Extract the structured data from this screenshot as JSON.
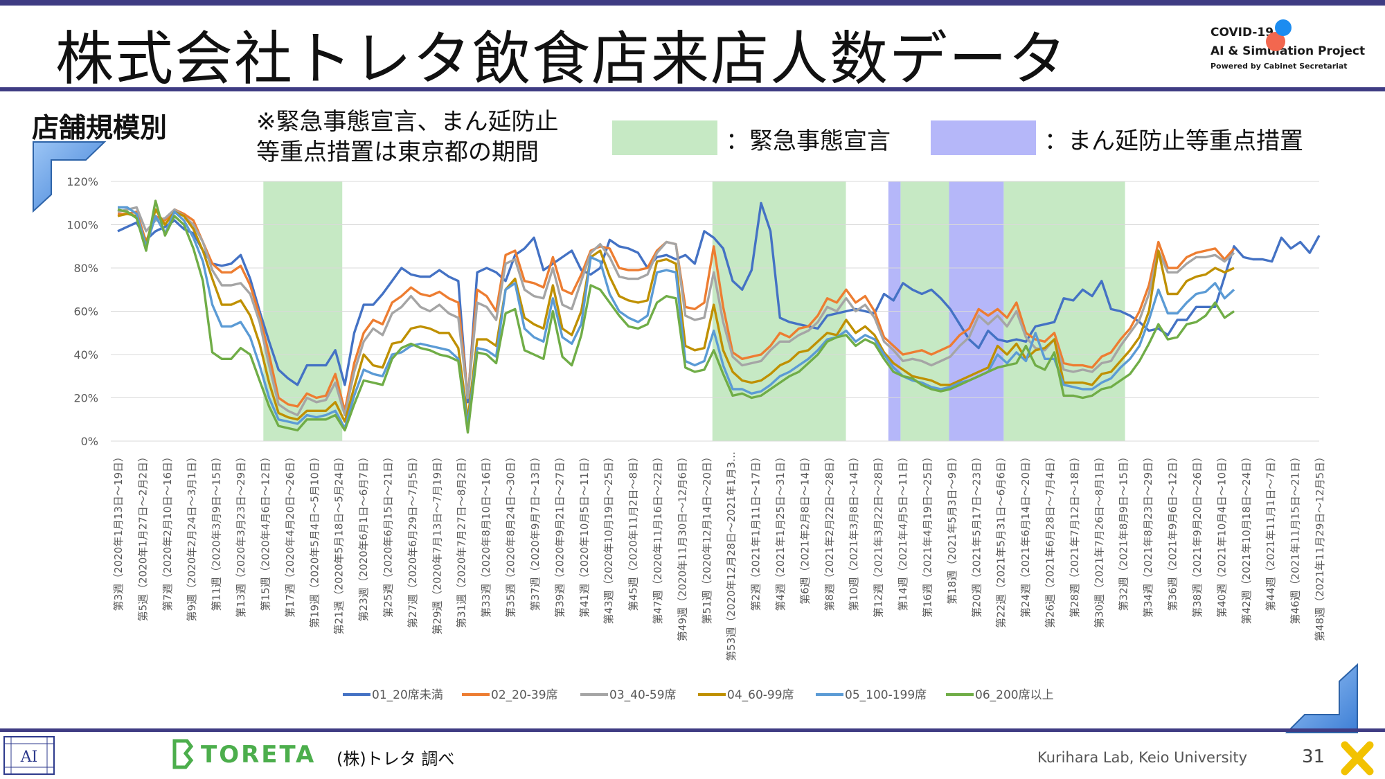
{
  "title": "株式会社トレタ飲食店来店人数データ",
  "project_logo": {
    "line1": "COVID-19",
    "line2": "AI & Simulation Project",
    "line3": "Powered by Cabinet Secretariat"
  },
  "subtitle": "店舗規模別",
  "note_line1": "※緊急事態宣言、まん延防止",
  "note_line2": "等重点措置は東京都の期間",
  "legend_green": "：緊急事態宣言",
  "legend_blue": "：まん延防止等重点措置",
  "colors": {
    "frame": "#3f3c83",
    "emergency": "#c6e9c4",
    "priority": "#b5b7f9"
  },
  "toreta_logo": "TORETA",
  "source": "(株)トレタ 調べ",
  "lab": "Kurihara Lab, Keio University",
  "page_number": "31",
  "chart_data": {
    "type": "line",
    "ylim": [
      0,
      120
    ],
    "yticks": [
      "0%",
      "20%",
      "40%",
      "60%",
      "80%",
      "100%",
      "120%"
    ],
    "y_unit": "%",
    "x_labels": [
      "第3週（2020年1月13日～19日）",
      "第5週（2020年1月27日～2月2日）",
      "第7週（2020年2月10日～16日）",
      "第9週（2020年2月24日～3月1日）",
      "第11週（2020年3月9日～15日）",
      "第13週（2020年3月23日～29日）",
      "第15週（2020年4月6日～12日）",
      "第17週（2020年4月20日～26日）",
      "第19週（2020年5月4日～5月10日）",
      "第21週（2020年5月18日～5月24日）",
      "第23週（2020年6月1日～6月7日）",
      "第25週（2020年6月15日～21日）",
      "第27週（2020年6月29日～7月5日）",
      "第29週（2020年7月13日～7月19日）",
      "第31週（2020年7月27日～8月2日）",
      "第33週（2020年8月10日～16日）",
      "第35週（2020年8月24日～30日）",
      "第37週（2020年9月7日～13日）",
      "第39週（2020年9月21日～27日）",
      "第41週（2020年10月5日～11日）",
      "第43週（2020年10月19日～25日）",
      "第45週（2020年11月2日～8日）",
      "第47週（2020年11月16日～22日）",
      "第49週（2020年11月30日～12月6日）",
      "第51週（2020年12月14日～20日）",
      "第53週（2020年12月28日～2021年1月3…",
      "第2週（2021年1月11日～17日）",
      "第4週（2021年1月25日～31日）",
      "第6週（2021年2月8日～14日）",
      "第8週（2021年2月22日～28日）",
      "第10週（2021年3月8日～14日）",
      "第12週（2021年3月22日～28日）",
      "第14週（2021年4月5日～11日）",
      "第16週（2021年4月19日～25日）",
      "第18週（2021年5月3日～9日）",
      "第20週（2021年5月17日～23日）",
      "第22週（2021年5月31日～6月6日）",
      "第24週（2021年6月14日～20日）",
      "第26週（2021年6月28日～7月4日）",
      "第28週（2021年7月12日～18日）",
      "第30週（2021年7月26日～8月1日）",
      "第32週（2021年8月9日～15日）",
      "第34週（2021年8月23日～29日）",
      "第36週（2021年9月6日～12日）",
      "第38週（2021年9月20日～26日）",
      "第40週（2021年10月4日～10日）",
      "第42週（2021年10月18日～24日）",
      "第44週（2021年11月1日～7日）",
      "第46週（2021年11月15日～21日）",
      "第48週（2021年11月29日～12月5日）"
    ],
    "x_index_first": 1,
    "x_index_last": 100,
    "emergency_periods": [
      [
        13,
        19.5
      ],
      [
        50,
        61
      ],
      [
        65.5,
        69.5
      ],
      [
        74,
        84
      ]
    ],
    "priority_periods": [
      [
        64.5,
        65.5
      ],
      [
        69.5,
        74
      ]
    ],
    "series": [
      {
        "name": "01_20席未満",
        "color": "#4472c4",
        "values": [
          97,
          99,
          101,
          93,
          97,
          99,
          102,
          98,
          96,
          88,
          82,
          81,
          82,
          86,
          75,
          60,
          46,
          33,
          29,
          26,
          35,
          35,
          35,
          42,
          26,
          50,
          63,
          63,
          68,
          74,
          80,
          77,
          76,
          76,
          79,
          76,
          74,
          18,
          78,
          80,
          78,
          74,
          86,
          89,
          94,
          79,
          82,
          85,
          88,
          79,
          77,
          80,
          93,
          90,
          89,
          87,
          80,
          85,
          86,
          84,
          86,
          82,
          97,
          94,
          89,
          74,
          70,
          79,
          110,
          97,
          57,
          55,
          54,
          53,
          52,
          58,
          59,
          60,
          61,
          60,
          59,
          68,
          65,
          73,
          70,
          68,
          70,
          66,
          61,
          54,
          47,
          43,
          51,
          47,
          46,
          47,
          46,
          53,
          54,
          55,
          66,
          65,
          70,
          67,
          74,
          61,
          60,
          58,
          55,
          51,
          52,
          49,
          56,
          56,
          62,
          62,
          62,
          76,
          90,
          85,
          84,
          84,
          83,
          94,
          89,
          92,
          87,
          95
        ]
      },
      {
        "name": "02_20-39席",
        "color": "#ed7d31",
        "values": [
          105,
          105,
          106,
          92,
          104,
          102,
          107,
          105,
          102,
          92,
          82,
          78,
          78,
          81,
          72,
          58,
          40,
          20,
          17,
          16,
          22,
          20,
          21,
          31,
          14,
          36,
          50,
          56,
          54,
          64,
          67,
          71,
          68,
          67,
          69,
          66,
          64,
          20,
          70,
          67,
          60,
          86,
          88,
          74,
          73,
          71,
          85,
          70,
          68,
          77,
          88,
          90,
          89,
          80,
          79,
          79,
          80,
          88,
          92,
          91,
          62,
          61,
          64,
          90,
          62,
          41,
          38,
          39,
          40,
          44,
          50,
          48,
          52,
          53,
          58,
          66,
          64,
          70,
          64,
          67,
          60,
          48,
          44,
          40,
          41,
          42,
          40,
          42,
          44,
          49,
          52,
          61,
          58,
          61,
          57,
          64,
          50,
          47,
          46,
          50,
          36,
          35,
          35,
          34,
          39,
          41,
          47,
          52,
          60,
          72,
          92,
          80,
          80,
          85,
          87,
          88,
          89,
          84,
          89
        ]
      },
      {
        "name": "03_40-59席",
        "color": "#a5a5a5",
        "values": [
          106,
          107,
          108,
          97,
          102,
          103,
          107,
          104,
          100,
          92,
          79,
          72,
          72,
          73,
          68,
          55,
          35,
          17,
          14,
          12,
          20,
          18,
          19,
          27,
          12,
          32,
          46,
          52,
          49,
          59,
          62,
          67,
          62,
          60,
          63,
          59,
          57,
          20,
          64,
          62,
          56,
          82,
          84,
          70,
          67,
          66,
          80,
          63,
          61,
          74,
          87,
          91,
          85,
          76,
          75,
          75,
          77,
          87,
          92,
          91,
          58,
          56,
          57,
          78,
          55,
          39,
          35,
          36,
          37,
          42,
          46,
          46,
          49,
          51,
          55,
          62,
          60,
          66,
          60,
          63,
          57,
          46,
          42,
          37,
          38,
          37,
          35,
          37,
          39,
          44,
          48,
          58,
          54,
          58,
          53,
          60,
          48,
          43,
          42,
          47,
          33,
          32,
          33,
          32,
          36,
          37,
          44,
          50,
          56,
          68,
          88,
          78,
          78,
          82,
          85,
          85,
          86,
          83,
          87
        ]
      },
      {
        "name": "04_60-99席",
        "color": "#bf9000",
        "values": [
          104,
          105,
          104,
          91,
          107,
          100,
          106,
          104,
          98,
          88,
          75,
          63,
          63,
          65,
          58,
          45,
          27,
          13,
          11,
          10,
          14,
          14,
          14,
          18,
          9,
          25,
          40,
          35,
          34,
          45,
          46,
          52,
          53,
          52,
          50,
          50,
          43,
          10,
          47,
          47,
          44,
          70,
          75,
          57,
          54,
          52,
          72,
          52,
          49,
          60,
          85,
          88,
          76,
          67,
          65,
          64,
          65,
          83,
          84,
          82,
          44,
          42,
          43,
          63,
          42,
          32,
          28,
          27,
          28,
          31,
          35,
          37,
          41,
          42,
          46,
          50,
          49,
          56,
          50,
          53,
          49,
          41,
          36,
          33,
          30,
          29,
          28,
          26,
          26,
          28,
          30,
          32,
          34,
          44,
          40,
          45,
          38,
          42,
          43,
          47,
          27,
          27,
          27,
          26,
          31,
          32,
          37,
          42,
          48,
          60,
          88,
          68,
          68,
          74,
          76,
          77,
          80,
          78,
          80
        ]
      },
      {
        "name": "05_100-199席",
        "color": "#5b9bd5",
        "values": [
          108,
          108,
          105,
          90,
          104,
          96,
          106,
          102,
          94,
          83,
          63,
          53,
          53,
          55,
          48,
          35,
          20,
          10,
          9,
          8,
          12,
          11,
          12,
          14,
          6,
          21,
          33,
          31,
          30,
          40,
          41,
          44,
          45,
          44,
          43,
          42,
          38,
          7,
          43,
          42,
          39,
          70,
          73,
          52,
          48,
          46,
          66,
          48,
          45,
          54,
          85,
          83,
          68,
          60,
          57,
          55,
          58,
          78,
          79,
          78,
          37,
          35,
          37,
          51,
          35,
          24,
          24,
          22,
          23,
          26,
          30,
          32,
          35,
          38,
          42,
          47,
          48,
          51,
          46,
          49,
          47,
          40,
          34,
          30,
          28,
          27,
          25,
          24,
          25,
          27,
          28,
          30,
          32,
          40,
          36,
          41,
          37,
          50,
          38,
          38,
          26,
          25,
          24,
          24,
          27,
          29,
          34,
          38,
          44,
          56,
          70,
          59,
          59,
          64,
          68,
          69,
          73,
          66,
          70
        ]
      },
      {
        "name": "06_200席以上",
        "color": "#70ad47",
        "values": [
          107,
          106,
          103,
          88,
          111,
          95,
          104,
          100,
          89,
          74,
          41,
          38,
          38,
          43,
          40,
          28,
          16,
          7,
          6,
          5,
          10,
          10,
          10,
          12,
          5,
          17,
          28,
          27,
          26,
          38,
          43,
          45,
          43,
          42,
          40,
          39,
          37,
          4,
          41,
          40,
          36,
          59,
          61,
          42,
          40,
          38,
          60,
          39,
          35,
          49,
          72,
          70,
          64,
          58,
          53,
          52,
          54,
          64,
          67,
          66,
          34,
          32,
          33,
          42,
          31,
          21,
          22,
          20,
          21,
          24,
          27,
          30,
          32,
          36,
          40,
          46,
          48,
          49,
          44,
          47,
          45,
          38,
          32,
          30,
          29,
          26,
          24,
          23,
          24,
          26,
          28,
          30,
          32,
          34,
          35,
          36,
          44,
          35,
          33,
          41,
          21,
          21,
          20,
          21,
          24,
          25,
          28,
          31,
          37,
          45,
          54,
          47,
          48,
          54,
          55,
          58,
          64,
          57,
          60
        ]
      }
    ]
  }
}
